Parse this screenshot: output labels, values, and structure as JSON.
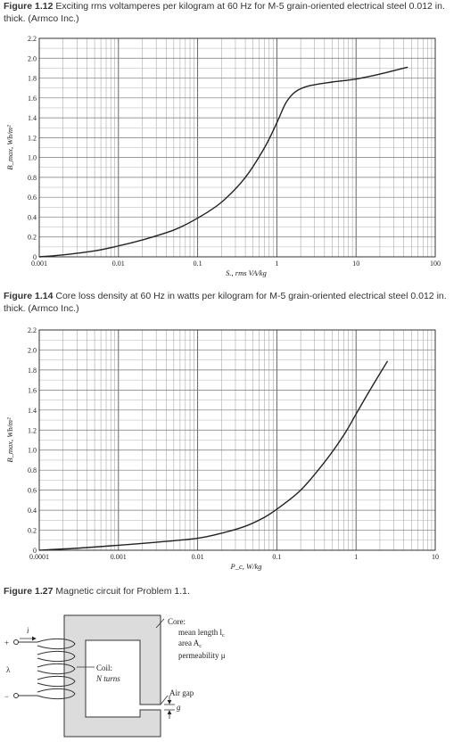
{
  "figures": [
    {
      "label": "Figure 1.12",
      "text": "Exciting rms voltamperes per kilogram at 60 Hz for M-5 grain-oriented electrical steel 0.012 in. thick. (Armco Inc.)"
    },
    {
      "label": "Figure 1.14",
      "text": "Core loss density at 60 Hz in watts per kilogram for M-5 grain-oriented electrical steel 0.012 in. thick. (Armco Inc.)"
    },
    {
      "label": "Figure 1.27",
      "text": "Magnetic circuit for Problem 1.1."
    }
  ],
  "chart_data": [
    {
      "type": "line",
      "xscale": "log",
      "xlim": [
        0.001,
        100
      ],
      "ylim": [
        0,
        2.2
      ],
      "grid": true,
      "xlabel": "S., rms VA/kg",
      "ylabel": "B_max, Wb/m²",
      "x_ticks": [
        "0.001",
        "0.01",
        "0.1",
        "1",
        "10",
        "100"
      ],
      "y_ticks": [
        "0",
        "0.2",
        "0.4",
        "0.6",
        "0.8",
        "1.0",
        "1.2",
        "1.4",
        "1.6",
        "1.8",
        "2.0",
        "2.2"
      ],
      "x": [
        0.001,
        0.002,
        0.005,
        0.01,
        0.02,
        0.05,
        0.1,
        0.2,
        0.4,
        0.7,
        1.0,
        1.3,
        1.7,
        2.5,
        5,
        10,
        20,
        45
      ],
      "y": [
        0.0,
        0.02,
        0.06,
        0.11,
        0.17,
        0.27,
        0.39,
        0.55,
        0.8,
        1.1,
        1.35,
        1.55,
        1.66,
        1.72,
        1.76,
        1.79,
        1.84,
        1.91
      ]
    },
    {
      "type": "line",
      "xscale": "log",
      "xlim": [
        0.0001,
        10
      ],
      "ylim": [
        0,
        2.2
      ],
      "grid": true,
      "xlabel": "P_c, W/kg",
      "ylabel": "B_max, Wb/m²",
      "x_ticks": [
        "0.0001",
        "0.001",
        "0.01",
        "0.1",
        "1",
        "10"
      ],
      "y_ticks": [
        "0",
        "0.2",
        "0.4",
        "0.6",
        "0.8",
        "1.0",
        "1.2",
        "1.4",
        "1.6",
        "1.8",
        "2.0",
        "2.2"
      ],
      "x": [
        0.0001,
        0.0003,
        0.001,
        0.003,
        0.01,
        0.02,
        0.04,
        0.07,
        0.1,
        0.2,
        0.4,
        0.7,
        1.0,
        1.5,
        2.5
      ],
      "y": [
        0.0,
        0.02,
        0.05,
        0.08,
        0.12,
        0.17,
        0.24,
        0.33,
        0.41,
        0.6,
        0.88,
        1.15,
        1.36,
        1.6,
        1.89
      ]
    }
  ],
  "diagram": {
    "core_title": "Core:",
    "core_length": "mean length l",
    "core_length_sub": "c",
    "core_area": "area A",
    "core_area_sub": "c",
    "core_perm": "permeability μ",
    "coil_title": "Coil:",
    "coil_turns": "N turns",
    "airgap": "Air gap",
    "gap_symbol": "g",
    "current": "i",
    "plus": "+",
    "minus": "−",
    "lambda": "λ"
  }
}
